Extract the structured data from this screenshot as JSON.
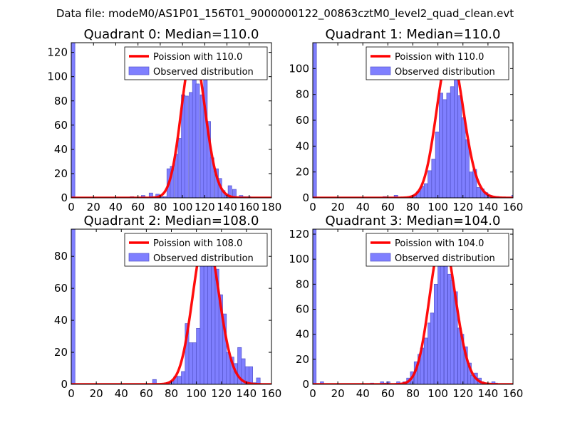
{
  "suptitle": "Data file: modeM0/AS1P01_156T01_9000000122_00863cztM0_level2_quad_clean.evt",
  "chart_data": [
    {
      "type": "bar",
      "title": "Quadrant 0: Median=110.0",
      "median": 110.0,
      "xlim": [
        0,
        180
      ],
      "ylim": [
        0,
        128
      ],
      "xticks": [
        0,
        20,
        40,
        60,
        80,
        100,
        120,
        140,
        160,
        180
      ],
      "yticks": [
        0,
        20,
        40,
        60,
        80,
        100,
        120
      ],
      "legend": {
        "curve_label": "Poission with 110.0",
        "bars_label": "Observed distribution",
        "placement": "top-right"
      },
      "bin_width": 3.3,
      "bars": [
        [
          0,
          128
        ],
        [
          53,
          1
        ],
        [
          63,
          2
        ],
        [
          70,
          4
        ],
        [
          73,
          1
        ],
        [
          76,
          3
        ],
        [
          80,
          1
        ],
        [
          83,
          1
        ],
        [
          86,
          24
        ],
        [
          89,
          26
        ],
        [
          93,
          36
        ],
        [
          96,
          49
        ],
        [
          99,
          85
        ],
        [
          102,
          84
        ],
        [
          106,
          87
        ],
        [
          109,
          113
        ],
        [
          112,
          94
        ],
        [
          116,
          85
        ],
        [
          119,
          98
        ],
        [
          122,
          63
        ],
        [
          125,
          33
        ],
        [
          129,
          24
        ],
        [
          132,
          16
        ],
        [
          135,
          6
        ],
        [
          138,
          2
        ],
        [
          141,
          10
        ],
        [
          145,
          7
        ],
        [
          148,
          1
        ],
        [
          151,
          2
        ],
        [
          154,
          1
        ],
        [
          158,
          1
        ]
      ],
      "curve_peak": 122
    },
    {
      "type": "bar",
      "title": "Quadrant 1: Median=110.0",
      "median": 110.0,
      "xlim": [
        0,
        160
      ],
      "ylim": [
        0,
        120
      ],
      "xticks": [
        0,
        20,
        40,
        60,
        80,
        100,
        120,
        140,
        160
      ],
      "yticks": [
        0,
        20,
        40,
        60,
        80,
        100
      ],
      "legend": {
        "curve_label": "Poission with 110.0",
        "bars_label": "Observed distribution",
        "placement": "top-right"
      },
      "bin_width": 2.95,
      "bars": [
        [
          0,
          120
        ],
        [
          56,
          1
        ],
        [
          65,
          2
        ],
        [
          77,
          1
        ],
        [
          80,
          2
        ],
        [
          83,
          5
        ],
        [
          86,
          9
        ],
        [
          89,
          11
        ],
        [
          92,
          21
        ],
        [
          95,
          30
        ],
        [
          98,
          51
        ],
        [
          101,
          81
        ],
        [
          104,
          76
        ],
        [
          107,
          81
        ],
        [
          110,
          86
        ],
        [
          113,
          104
        ],
        [
          116,
          79
        ],
        [
          119,
          62
        ],
        [
          122,
          45
        ],
        [
          125,
          20
        ],
        [
          128,
          22
        ],
        [
          131,
          8
        ],
        [
          134,
          7
        ],
        [
          137,
          4
        ],
        [
          140,
          2
        ],
        [
          143,
          1
        ],
        [
          146,
          1
        ],
        [
          159,
          2
        ]
      ],
      "curve_peak": 114
    },
    {
      "type": "bar",
      "title": "Quadrant 2: Median=108.0",
      "median": 108.0,
      "xlim": [
        0,
        160
      ],
      "ylim": [
        0,
        97
      ],
      "xticks": [
        0,
        20,
        40,
        60,
        80,
        100,
        120,
        140,
        160
      ],
      "yticks": [
        0,
        20,
        40,
        60,
        80
      ],
      "legend": {
        "curve_label": "Poission with 108.0",
        "bars_label": "Observed distribution",
        "placement": "top-right"
      },
      "bin_width": 3.0,
      "bars": [
        [
          0,
          97
        ],
        [
          65,
          3
        ],
        [
          76,
          1
        ],
        [
          79,
          2
        ],
        [
          82,
          5
        ],
        [
          85,
          5
        ],
        [
          88,
          8
        ],
        [
          91,
          38
        ],
        [
          94,
          26
        ],
        [
          97,
          26
        ],
        [
          100,
          35
        ],
        [
          103,
          75
        ],
        [
          106,
          77
        ],
        [
          109,
          75
        ],
        [
          112,
          91
        ],
        [
          115,
          72
        ],
        [
          118,
          56
        ],
        [
          121,
          44
        ],
        [
          124,
          20
        ],
        [
          127,
          17
        ],
        [
          130,
          13
        ],
        [
          133,
          23
        ],
        [
          136,
          16
        ],
        [
          139,
          11
        ],
        [
          142,
          11
        ],
        [
          145,
          1
        ],
        [
          148,
          4
        ]
      ],
      "curve_peak": 93
    },
    {
      "type": "bar",
      "title": "Quadrant 3: Median=104.0",
      "median": 104.0,
      "xlim": [
        0,
        160
      ],
      "ylim": [
        0,
        124
      ],
      "xticks": [
        0,
        20,
        40,
        60,
        80,
        100,
        120,
        140,
        160
      ],
      "yticks": [
        0,
        20,
        40,
        60,
        80,
        100,
        120
      ],
      "legend": {
        "curve_label": "Poission with 104.0",
        "bars_label": "Observed distribution",
        "placement": "top-right"
      },
      "bin_width": 2.7,
      "bars": [
        [
          0,
          124
        ],
        [
          6,
          2
        ],
        [
          46,
          1
        ],
        [
          54,
          2
        ],
        [
          56,
          1
        ],
        [
          59,
          2
        ],
        [
          67,
          2
        ],
        [
          72,
          2
        ],
        [
          75,
          5
        ],
        [
          78,
          10
        ],
        [
          81,
          18
        ],
        [
          84,
          24
        ],
        [
          86,
          29
        ],
        [
          89,
          37
        ],
        [
          92,
          49
        ],
        [
          94,
          57
        ],
        [
          97,
          80
        ],
        [
          100,
          95
        ],
        [
          102,
          101
        ],
        [
          105,
          108
        ],
        [
          108,
          88
        ],
        [
          110,
          83
        ],
        [
          113,
          74
        ],
        [
          116,
          45
        ],
        [
          118,
          40
        ],
        [
          121,
          30
        ],
        [
          124,
          17
        ],
        [
          126,
          7
        ],
        [
          129,
          9
        ],
        [
          132,
          5
        ],
        [
          134,
          2
        ],
        [
          137,
          1
        ],
        [
          140,
          1
        ],
        [
          143,
          2
        ],
        [
          145,
          1
        ]
      ],
      "curve_peak": 117
    }
  ]
}
